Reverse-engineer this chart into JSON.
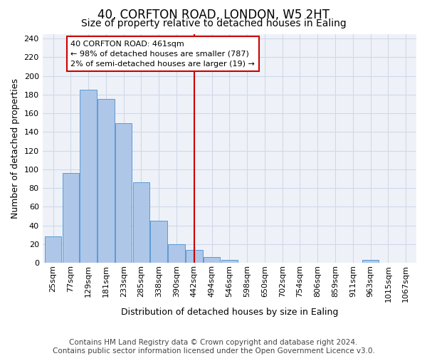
{
  "title": "40, CORFTON ROAD, LONDON, W5 2HT",
  "subtitle": "Size of property relative to detached houses in Ealing",
  "xlabel": "Distribution of detached houses by size in Ealing",
  "ylabel": "Number of detached properties",
  "bar_labels": [
    "25sqm",
    "77sqm",
    "129sqm",
    "181sqm",
    "233sqm",
    "285sqm",
    "338sqm",
    "390sqm",
    "442sqm",
    "494sqm",
    "546sqm",
    "598sqm",
    "650sqm",
    "702sqm",
    "754sqm",
    "806sqm",
    "859sqm",
    "911sqm",
    "963sqm",
    "1015sqm",
    "1067sqm"
  ],
  "bar_values": [
    28,
    96,
    185,
    175,
    149,
    86,
    45,
    20,
    14,
    6,
    3,
    0,
    0,
    0,
    0,
    0,
    0,
    0,
    3,
    0,
    0
  ],
  "bar_color": "#aec6e8",
  "bar_edge_color": "#5b9bd5",
  "vline_index": 8,
  "vline_color": "#cc0000",
  "annotation_text": "40 CORFTON ROAD: 461sqm\n← 98% of detached houses are smaller (787)\n2% of semi-detached houses are larger (19) →",
  "annotation_box_color": "#cc0000",
  "ylim": [
    0,
    245
  ],
  "yticks": [
    0,
    20,
    40,
    60,
    80,
    100,
    120,
    140,
    160,
    180,
    200,
    220,
    240
  ],
  "grid_color": "#d0d8e8",
  "background_color": "#eef2f8",
  "footer": "Contains HM Land Registry data © Crown copyright and database right 2024.\nContains public sector information licensed under the Open Government Licence v3.0.",
  "title_fontsize": 12,
  "subtitle_fontsize": 10,
  "xlabel_fontsize": 9,
  "ylabel_fontsize": 9,
  "footer_fontsize": 7.5,
  "tick_fontsize": 8,
  "annot_fontsize": 8
}
